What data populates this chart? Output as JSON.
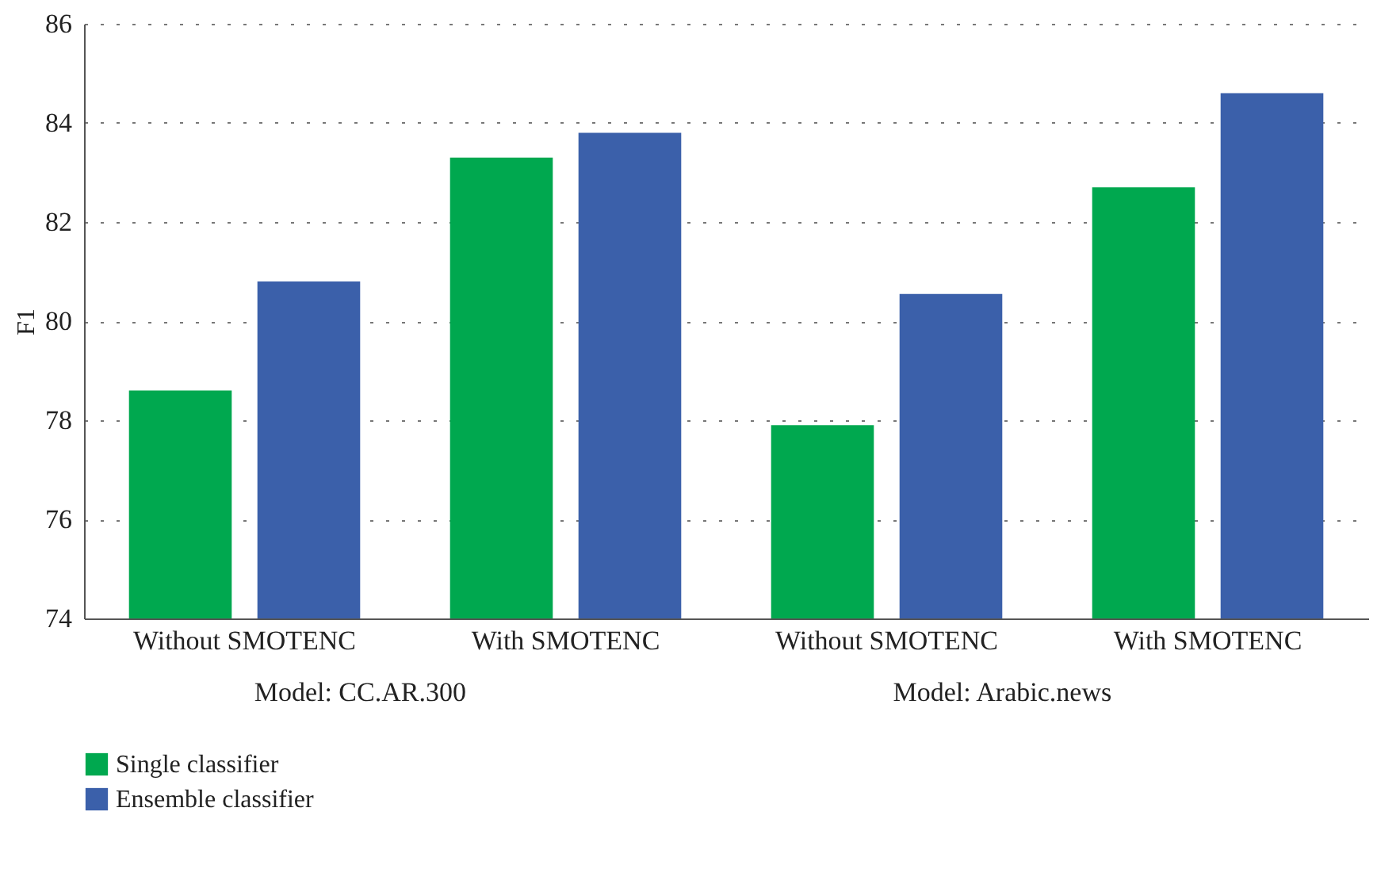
{
  "chart_data": {
    "type": "bar",
    "ylabel": "F1",
    "categories": [
      "Without SMOTENC",
      "With SMOTENC",
      "Without SMOTENC",
      "With SMOTENC"
    ],
    "series": [
      {
        "name": "Single classifier",
        "color": "#00a84f",
        "values": [
          78.6,
          83.3,
          77.9,
          82.7
        ]
      },
      {
        "name": "Ensemble classifier",
        "color": "#3b60aa",
        "values": [
          80.8,
          83.8,
          80.55,
          84.6
        ]
      }
    ],
    "annotations": [
      "Model: CC.AR.300",
      "Model: Arabic.news"
    ],
    "ylim": [
      74,
      86
    ],
    "yticks": [
      74,
      76,
      78,
      80,
      82,
      84,
      86
    ],
    "grid": "y",
    "legend": "bottom left"
  }
}
